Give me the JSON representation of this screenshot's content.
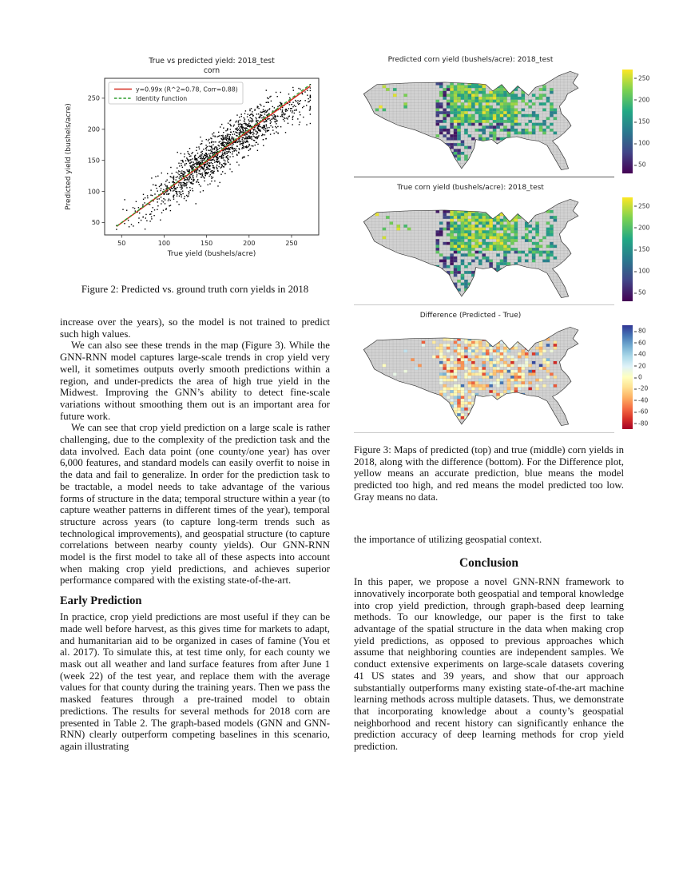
{
  "figure2": {
    "caption": "Figure 2: Predicted vs. ground truth corn yields in 2018"
  },
  "left_column": {
    "para1": "increase over the years), so the model is not trained to predict such high values.",
    "para2": "We can also see these trends in the map (Figure 3). While the GNN-RNN model captures large-scale trends in crop yield very well, it sometimes outputs overly smooth predictions within a region, and under-predicts the area of high true yield in the Midwest. Improving the GNN’s ability to detect fine-scale variations without smoothing them out is an important area for future work.",
    "para3": "We can see that crop yield prediction on a large scale is rather challenging, due to the complexity of the prediction task and the data involved. Each data point (one county/one year) has over 6,000 features, and standard models can easily overfit to noise in the data and fail to generalize. In order for the prediction task to be tractable, a model needs to take advantage of the various forms of structure in the data; temporal structure within a year (to capture weather patterns in different times of the year), temporal structure across years (to capture long-term trends such as technological improvements), and geospatial structure (to capture correlations between nearby county yields). Our GNN-RNN model is the first model to take all of these aspects into account when making crop yield predictions, and achieves superior performance compared with the existing state-of-the-art.",
    "heading_early": "Early Prediction",
    "para4": "In practice, crop yield predictions are most useful if they can be made well before harvest, as this gives time for markets to adapt, and humanitarian aid to be organized in cases of famine (You et al. 2017). To simulate this, at test time only, for each county we mask out all weather and land surface features from after June 1 (week 22) of the test year, and replace them with the average values for that county during the training years. Then we pass the masked features through a pre-trained model to obtain predictions. The results for several methods for 2018 corn are presented in Table 2. The graph-based models (GNN and GNN-RNN) clearly outperform competing baselines in this scenario, again illustrating"
  },
  "right_column": {
    "figure3_caption": "Figure 3: Maps of predicted (top) and true (middle) corn yields in 2018, along with the difference (bottom). For the Difference plot, yellow means an accurate prediction, blue means the model predicted too high, and red means the model predicted too low. Gray means no data.",
    "para1": "the importance of utilizing geospatial context.",
    "heading_conclusion": "Conclusion",
    "para2": "In this paper, we propose a novel GNN-RNN framework to innovatively incorporate both geospatial and temporal knowledge into crop yield prediction, through graph-based deep learning methods. To our knowledge, our paper is the first to take advantage of the spatial structure in the data when making crop yield predictions, as opposed to previous approaches which assume that neighboring counties are independent samples. We conduct extensive experiments on large-scale datasets covering 41 US states and 39 years, and show that our approach substantially outperforms many existing state-of-the-art machine learning methods across multiple datasets. Thus, we demonstrate that incorporating knowledge about a county’s geospatial neighborhood and recent history can significantly enhance the prediction accuracy of deep learning methods for crop yield prediction."
  },
  "chart_data": [
    {
      "type": "scatter",
      "title": "True vs predicted yield: 2018_test",
      "subtitle": "corn",
      "xlabel": "True yield (bushels/acre)",
      "ylabel": "Predicted yield (bushels/acre)",
      "xlim": [
        30,
        282
      ],
      "ylim": [
        30,
        282
      ],
      "xticks": [
        50,
        100,
        150,
        200,
        250
      ],
      "yticks": [
        50,
        100,
        150,
        200,
        250
      ],
      "legend": [
        {
          "label": "y=0.99x (R^2=0.78, Corr=0.88)",
          "color": "#d62b20",
          "style": "solid"
        },
        {
          "label": "Identity function",
          "color": "#2e9e2e",
          "style": "dashed"
        }
      ],
      "fit_line": {
        "slope": 0.99,
        "intercept": 0,
        "r_squared": 0.78,
        "corr": 0.88
      },
      "points": {
        "n": 1450,
        "x_center": 168,
        "x_spread": 46,
        "x_min": 44,
        "x_max": 272,
        "noise_sd": 17,
        "marker_color": "#000000",
        "seed": 42
      }
    },
    {
      "type": "heatmap",
      "title": "Predicted corn yield (bushels/acre): 2018_test",
      "colormap": "viridis",
      "colorbar_stops": [
        "#fde725",
        "#7ad151",
        "#22a884",
        "#2a788e",
        "#414487",
        "#440154"
      ],
      "colorbar_ticks": [
        250,
        200,
        150,
        100,
        50
      ],
      "colorbar_range": [
        30,
        270
      ],
      "no_data_color": "#d2d2d2",
      "seed": 7
    },
    {
      "type": "heatmap",
      "title": "True corn yield (bushels/acre): 2018_test",
      "colormap": "viridis",
      "colorbar_stops": [
        "#fde725",
        "#7ad151",
        "#22a884",
        "#2a788e",
        "#414487",
        "#440154"
      ],
      "colorbar_ticks": [
        250,
        200,
        150,
        100,
        50
      ],
      "colorbar_range": [
        30,
        270
      ],
      "no_data_color": "#d2d2d2",
      "seed": 8
    },
    {
      "type": "heatmap",
      "title": "Difference (Predicted - True)",
      "colormap": "RdYlBu",
      "colorbar_stops": [
        "#313695",
        "#4575b4",
        "#74add1",
        "#abd9e9",
        "#e0f3f8",
        "#ffffbf",
        "#fee090",
        "#fdae61",
        "#f46d43",
        "#d73027",
        "#a50026"
      ],
      "colorbar_ticks": [
        80,
        60,
        40,
        20,
        0,
        -20,
        -40,
        -60,
        -80
      ],
      "colorbar_range": [
        -90,
        90
      ],
      "no_data_color": "#d2d2d2",
      "seed": 9
    }
  ]
}
